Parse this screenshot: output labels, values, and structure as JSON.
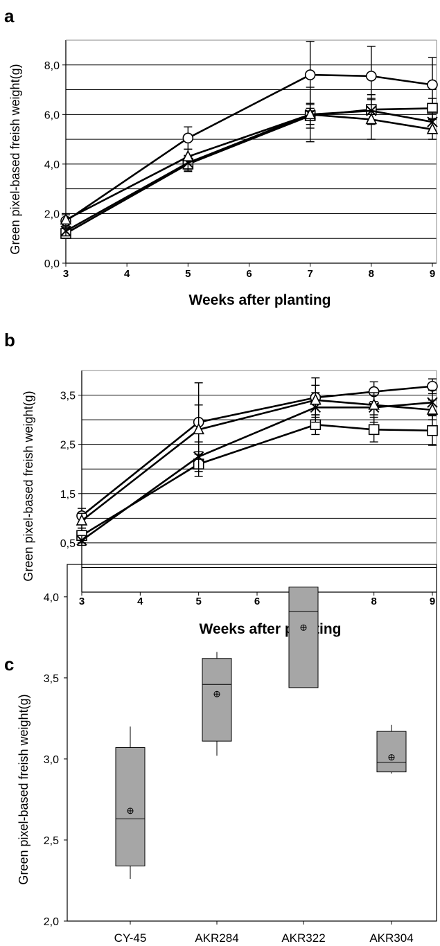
{
  "chart_data": [
    {
      "panel": "a",
      "type": "line",
      "xlabel": "Weeks after planting",
      "ylabel": "Green pixel-based freish weight(g)",
      "x": [
        3,
        5,
        7,
        8,
        9
      ],
      "x_ticks": [
        "3",
        "4",
        "5",
        "6",
        "7",
        "8",
        "9"
      ],
      "y_ticks": [
        "0,0",
        "2,0",
        "4,0",
        "6,0",
        "8,0"
      ],
      "ylim": [
        0,
        9
      ],
      "grid": true,
      "series": [
        {
          "marker": "circle",
          "values": [
            1.7,
            5.05,
            7.6,
            7.55,
            7.2
          ],
          "errors": [
            0.25,
            0.45,
            1.35,
            1.2,
            1.1
          ]
        },
        {
          "marker": "square",
          "values": [
            1.2,
            4.0,
            5.95,
            6.2,
            6.25
          ],
          "errors": [
            0.2,
            0.3,
            0.5,
            0.6,
            0.4
          ]
        },
        {
          "marker": "x",
          "values": [
            1.3,
            4.05,
            6.0,
            6.15,
            5.7
          ],
          "errors": [
            0.2,
            0.3,
            0.4,
            0.5,
            0.4
          ]
        },
        {
          "marker": "triangle",
          "values": [
            1.75,
            4.3,
            6.0,
            5.8,
            5.4
          ],
          "errors": [
            0.25,
            0.3,
            1.1,
            0.8,
            0.4
          ]
        }
      ]
    },
    {
      "panel": "b",
      "type": "line",
      "xlabel": "Weeks after planting",
      "ylabel": "Green pixel-based freish weight(g)",
      "x": [
        3,
        5,
        7,
        8,
        9
      ],
      "x_ticks": [
        "3",
        "4",
        "5",
        "6",
        "7",
        "8",
        "9"
      ],
      "y_ticks": [
        "0,5",
        "1,5",
        "2,5",
        "3,5"
      ],
      "ylim": [
        -0.5,
        4.0
      ],
      "grid": true,
      "series": [
        {
          "marker": "circle",
          "values": [
            1.05,
            2.95,
            3.45,
            3.57,
            3.68
          ],
          "errors": [
            0.15,
            0.8,
            0.4,
            0.2,
            0.15
          ]
        },
        {
          "marker": "square",
          "values": [
            0.65,
            2.1,
            2.9,
            2.8,
            2.78
          ],
          "errors": [
            0.15,
            0.25,
            0.2,
            0.25,
            0.3
          ]
        },
        {
          "marker": "x",
          "values": [
            0.55,
            2.25,
            3.25,
            3.25,
            3.35
          ],
          "errors": [
            0.1,
            0.3,
            0.3,
            0.3,
            0.25
          ]
        },
        {
          "marker": "triangle",
          "values": [
            0.95,
            2.8,
            3.4,
            3.3,
            3.2
          ],
          "errors": [
            0.15,
            0.5,
            0.3,
            0.2,
            0.2
          ]
        }
      ]
    },
    {
      "panel": "c",
      "type": "box",
      "ylabel": "Green pixel-based freish weight(g)",
      "categories": [
        "CY-45",
        "AKR284",
        "AKR322",
        "AKR304"
      ],
      "y_ticks": [
        "2,0",
        "2,5",
        "3,0",
        "3,5",
        "4,0"
      ],
      "ylim": [
        2.0,
        4.2
      ],
      "boxes": [
        {
          "min": 2.26,
          "q1": 2.34,
          "median": 2.63,
          "q3": 3.07,
          "max": 3.2,
          "mean": 2.68
        },
        {
          "min": 3.02,
          "q1": 3.11,
          "median": 3.46,
          "q3": 3.62,
          "max": 3.66,
          "mean": 3.4
        },
        {
          "min": 3.44,
          "q1": 3.44,
          "median": 3.91,
          "q3": 4.06,
          "max": 4.06,
          "mean": 3.81
        },
        {
          "min": 2.91,
          "q1": 2.92,
          "median": 2.98,
          "q3": 3.17,
          "max": 3.21,
          "mean": 3.01
        }
      ]
    }
  ]
}
